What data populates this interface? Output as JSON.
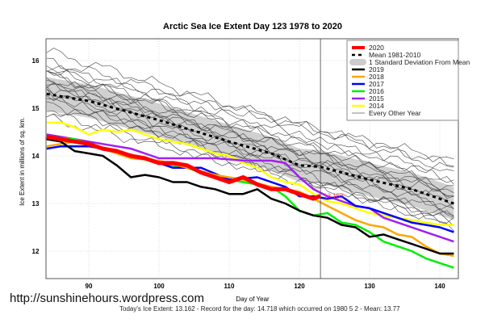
{
  "chart_data": {
    "type": "line",
    "title": "Arctic Sea Ice Extent Day 123 1978 to 2020",
    "xlabel": "Day of Year",
    "ylabel": "Ice Extent in millions of sq. km.",
    "xlim": [
      83.5,
      143
    ],
    "ylim": [
      11.5,
      16.5
    ],
    "xticks": [
      "90",
      "100",
      "110",
      "120",
      "130",
      "140"
    ],
    "yticks": [
      "12",
      "13",
      "14",
      "15",
      "16"
    ],
    "grid": true,
    "legend_position": "top-right",
    "current_day": 123,
    "current_value_label": "13.162",
    "mean": {
      "name": "Mean 1981-2010",
      "x": [
        84,
        90,
        100,
        110,
        116,
        120,
        123,
        130,
        136,
        142
      ],
      "y": [
        15.3,
        15.15,
        14.75,
        14.3,
        14.05,
        13.8,
        13.77,
        13.5,
        13.3,
        13.0
      ]
    },
    "std_band": {
      "name": "1 Standard Deviation From Mean",
      "width": 0.35
    },
    "other_years": {
      "name": "Every Other Year",
      "start_values": [
        16.2,
        16.0,
        15.9,
        15.8,
        15.7,
        15.6,
        15.6,
        15.5,
        15.5,
        15.4,
        15.3,
        15.2,
        15.1,
        15.0,
        14.9,
        15.7,
        15.3,
        15.45,
        15.85,
        14.8
      ],
      "end_values": [
        13.7,
        13.8,
        13.5,
        13.3,
        13.4,
        13.0,
        13.2,
        12.9,
        13.1,
        12.8,
        12.9,
        12.7,
        12.6,
        13.2,
        12.6,
        13.6,
        12.5,
        13.3,
        13.9,
        12.7
      ]
    },
    "series": [
      {
        "name": "2020",
        "color": "#ff0000",
        "x": [
          84,
          86,
          88,
          90,
          92,
          94,
          96,
          98,
          100,
          102,
          104,
          106,
          108,
          110,
          112,
          114,
          116,
          118,
          120,
          122,
          123
        ],
        "y": [
          14.4,
          14.35,
          14.3,
          14.25,
          14.15,
          14.1,
          14.0,
          13.95,
          13.85,
          13.85,
          13.8,
          13.65,
          13.55,
          13.45,
          13.55,
          13.4,
          13.3,
          13.3,
          13.2,
          13.1,
          13.16
        ]
      },
      {
        "name": "2019",
        "color": "#000000",
        "x": [
          84,
          86,
          88,
          90,
          92,
          94,
          96,
          98,
          100,
          102,
          104,
          106,
          108,
          110,
          112,
          114,
          116,
          118,
          120,
          122,
          124,
          126,
          128,
          130,
          132,
          134,
          136,
          138,
          140,
          142
        ],
        "y": [
          14.35,
          14.3,
          14.1,
          14.05,
          14.0,
          13.8,
          13.55,
          13.6,
          13.55,
          13.45,
          13.45,
          13.35,
          13.3,
          13.2,
          13.2,
          13.3,
          13.1,
          13.0,
          12.85,
          12.75,
          12.7,
          12.55,
          12.5,
          12.3,
          12.35,
          12.25,
          12.15,
          12.05,
          11.95,
          11.95
        ]
      },
      {
        "name": "2018",
        "color": "#ffa500",
        "x": [
          84,
          88,
          92,
          96,
          100,
          104,
          108,
          112,
          116,
          120,
          122,
          124,
          126,
          128,
          130,
          132,
          134,
          136,
          138,
          140,
          142
        ],
        "y": [
          14.2,
          14.3,
          14.15,
          13.95,
          13.9,
          13.75,
          13.6,
          13.5,
          13.35,
          13.25,
          13.1,
          12.95,
          12.8,
          12.65,
          12.55,
          12.5,
          12.35,
          12.3,
          12.1,
          11.95,
          11.9
        ]
      },
      {
        "name": "2017",
        "color": "#0000ff",
        "x": [
          84,
          86,
          90,
          94,
          98,
          102,
          106,
          110,
          114,
          118,
          120,
          122,
          124,
          126,
          128,
          130,
          132,
          134,
          136,
          138,
          140,
          142
        ],
        "y": [
          14.15,
          14.2,
          14.2,
          14.1,
          13.95,
          13.75,
          13.75,
          13.5,
          13.55,
          13.35,
          13.15,
          13.15,
          13.1,
          13.15,
          12.95,
          12.9,
          12.8,
          12.7,
          12.6,
          12.55,
          12.5,
          12.4
        ]
      },
      {
        "name": "2016",
        "color": "#00ee00",
        "x": [
          84,
          88,
          92,
          96,
          100,
          104,
          108,
          112,
          116,
          118,
          120,
          122,
          124,
          126,
          128,
          130,
          132,
          134,
          136,
          138,
          140,
          142
        ],
        "y": [
          14.4,
          14.35,
          14.15,
          14.0,
          13.85,
          13.75,
          13.55,
          13.45,
          13.35,
          13.15,
          12.85,
          12.75,
          12.8,
          12.6,
          12.55,
          12.4,
          12.2,
          12.1,
          12.0,
          11.85,
          11.75,
          11.65
        ]
      },
      {
        "name": "2015",
        "color": "#a020f0",
        "x": [
          84,
          88,
          92,
          96,
          100,
          104,
          108,
          112,
          116,
          118,
          120,
          122,
          124,
          126,
          128,
          130,
          132,
          134,
          136,
          138,
          140,
          142
        ],
        "y": [
          14.45,
          14.35,
          14.25,
          14.15,
          13.95,
          13.95,
          13.95,
          13.9,
          13.9,
          13.85,
          13.55,
          13.3,
          13.15,
          13.05,
          12.95,
          12.9,
          12.7,
          12.6,
          12.5,
          12.4,
          12.3,
          12.2
        ]
      },
      {
        "name": "2014",
        "color": "#ffff00",
        "x": [
          84,
          86,
          88,
          90,
          92,
          94,
          96,
          98,
          100,
          102,
          104,
          106,
          108,
          110,
          112,
          114,
          116,
          118,
          120,
          122,
          124,
          126,
          128,
          130,
          132,
          134,
          136,
          138,
          140,
          142
        ],
        "y": [
          14.7,
          14.7,
          14.6,
          14.45,
          14.55,
          14.5,
          14.55,
          14.45,
          14.35,
          14.3,
          14.25,
          14.15,
          14.05,
          14.0,
          13.85,
          13.75,
          13.55,
          13.45,
          13.4,
          13.2,
          13.05,
          13.0,
          12.9,
          12.8,
          12.75,
          12.7,
          12.65,
          12.6,
          12.55,
          12.55
        ]
      }
    ],
    "legend": [
      "2020",
      "Mean 1981-2010",
      "1 Standard Deviation From Mean",
      "2019",
      "2018",
      "2017",
      "2016",
      "2015",
      "2014",
      "Every Other Year"
    ]
  },
  "footer": {
    "url": "http://sunshinehours.wordpress.com",
    "stats": "Today's Ice Extent: 13.162  - Record for the day: 14.718 which occurred on 1980 5 2  - Mean: 13.77"
  }
}
